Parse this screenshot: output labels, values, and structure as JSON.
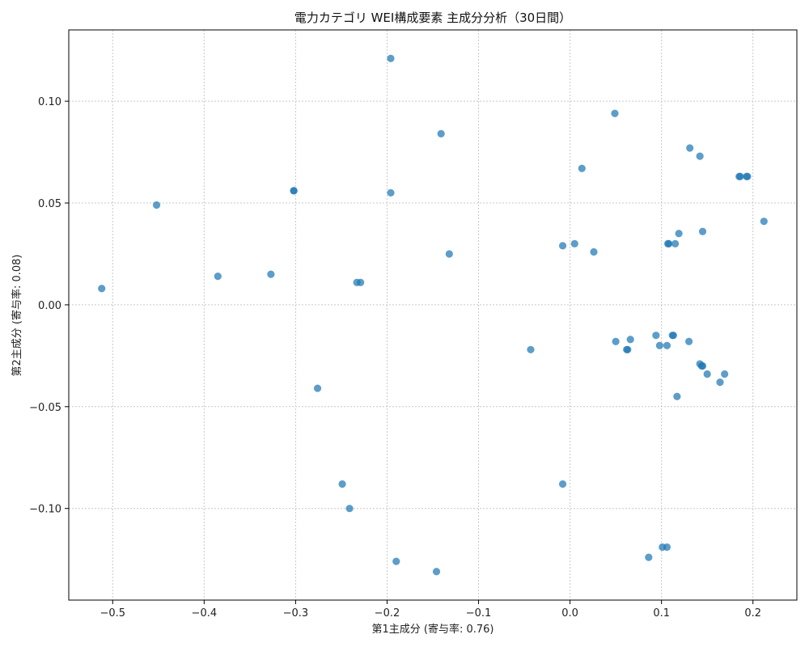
{
  "chart_data": {
    "type": "scatter",
    "title": "電力カテゴリ WEI構成要素 主成分分析（30日間）",
    "xlabel": "第1主成分 (寄与率: 0.76)",
    "ylabel": "第2主成分 (寄与率: 0.08)",
    "xlim": [
      -0.548,
      0.248
    ],
    "ylim": [
      -0.145,
      0.135
    ],
    "x_ticks": [
      -0.5,
      -0.4,
      -0.3,
      -0.2,
      -0.1,
      0.0,
      0.1,
      0.2
    ],
    "x_tick_labels": [
      "−0.5",
      "−0.4",
      "−0.3",
      "−0.2",
      "−0.1",
      "0.0",
      "0.1",
      "0.2"
    ],
    "y_ticks": [
      -0.1,
      -0.05,
      0.0,
      0.05,
      0.1
    ],
    "y_tick_labels": [
      "−0.10",
      "−0.05",
      "0.00",
      "0.05",
      "0.10"
    ],
    "grid": true,
    "marker_color": "#1f77b4",
    "points": [
      {
        "x": -0.512,
        "y": 0.008
      },
      {
        "x": -0.452,
        "y": 0.049
      },
      {
        "x": -0.385,
        "y": 0.014
      },
      {
        "x": -0.327,
        "y": 0.015
      },
      {
        "x": -0.302,
        "y": 0.056
      },
      {
        "x": -0.302,
        "y": 0.056
      },
      {
        "x": -0.276,
        "y": -0.041
      },
      {
        "x": -0.249,
        "y": -0.088
      },
      {
        "x": -0.241,
        "y": -0.1
      },
      {
        "x": -0.233,
        "y": 0.011
      },
      {
        "x": -0.229,
        "y": 0.011
      },
      {
        "x": -0.196,
        "y": 0.121
      },
      {
        "x": -0.196,
        "y": 0.055
      },
      {
        "x": -0.19,
        "y": -0.126
      },
      {
        "x": -0.146,
        "y": -0.131
      },
      {
        "x": -0.141,
        "y": 0.084
      },
      {
        "x": -0.132,
        "y": 0.025
      },
      {
        "x": -0.043,
        "y": -0.022
      },
      {
        "x": -0.008,
        "y": -0.088
      },
      {
        "x": -0.008,
        "y": 0.029
      },
      {
        "x": 0.005,
        "y": 0.03
      },
      {
        "x": 0.013,
        "y": 0.067
      },
      {
        "x": 0.026,
        "y": 0.026
      },
      {
        "x": 0.049,
        "y": 0.094
      },
      {
        "x": 0.05,
        "y": -0.018
      },
      {
        "x": 0.062,
        "y": -0.022
      },
      {
        "x": 0.063,
        "y": -0.022
      },
      {
        "x": 0.066,
        "y": -0.017
      },
      {
        "x": 0.086,
        "y": -0.124
      },
      {
        "x": 0.094,
        "y": -0.015
      },
      {
        "x": 0.098,
        "y": -0.02
      },
      {
        "x": 0.101,
        "y": -0.119
      },
      {
        "x": 0.106,
        "y": -0.119
      },
      {
        "x": 0.106,
        "y": -0.02
      },
      {
        "x": 0.107,
        "y": 0.03
      },
      {
        "x": 0.108,
        "y": 0.03
      },
      {
        "x": 0.112,
        "y": -0.015
      },
      {
        "x": 0.113,
        "y": -0.015
      },
      {
        "x": 0.115,
        "y": 0.03
      },
      {
        "x": 0.117,
        "y": -0.045
      },
      {
        "x": 0.119,
        "y": 0.035
      },
      {
        "x": 0.13,
        "y": -0.018
      },
      {
        "x": 0.131,
        "y": 0.077
      },
      {
        "x": 0.142,
        "y": 0.073
      },
      {
        "x": 0.142,
        "y": -0.029
      },
      {
        "x": 0.144,
        "y": -0.03
      },
      {
        "x": 0.145,
        "y": -0.03
      },
      {
        "x": 0.145,
        "y": 0.036
      },
      {
        "x": 0.15,
        "y": -0.034
      },
      {
        "x": 0.164,
        "y": -0.038
      },
      {
        "x": 0.169,
        "y": -0.034
      },
      {
        "x": 0.185,
        "y": 0.063
      },
      {
        "x": 0.186,
        "y": 0.063
      },
      {
        "x": 0.193,
        "y": 0.063
      },
      {
        "x": 0.194,
        "y": 0.063
      },
      {
        "x": 0.212,
        "y": 0.041
      }
    ]
  }
}
